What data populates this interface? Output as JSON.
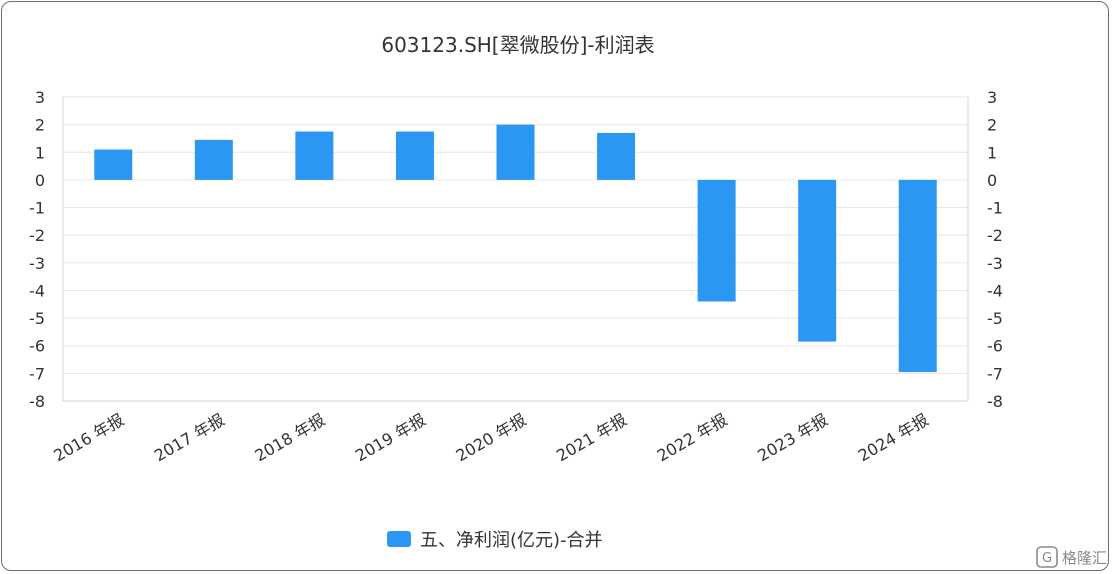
{
  "chart_data": {
    "type": "bar",
    "title": "603123.SH[翠微股份]-利润表",
    "categories": [
      "2016 年报",
      "2017 年报",
      "2018 年报",
      "2019 年报",
      "2020 年报",
      "2021 年报",
      "2022 年报",
      "2023 年报",
      "2024 年报"
    ],
    "series": [
      {
        "name": "五、净利润(亿元)-合并",
        "values": [
          1.1,
          1.45,
          1.75,
          1.75,
          2.0,
          1.7,
          -4.4,
          -5.85,
          -6.95
        ]
      }
    ],
    "yticks": [
      3,
      2,
      1,
      0,
      -1,
      -2,
      -3,
      -4,
      -5,
      -6,
      -7,
      -8
    ],
    "ytick_labels_left": [
      "3",
      "2",
      "1",
      "0",
      "-1",
      "-2",
      "-3",
      "-4",
      "-5",
      "-6",
      "-7",
      "-8"
    ],
    "ytick_labels_right": [
      "3",
      "2",
      "1",
      "0",
      "-1",
      "-2",
      "-3",
      "-4",
      "-5",
      "-6",
      "-7",
      "-8"
    ],
    "ylim": [
      -8,
      3
    ],
    "xlabel": "",
    "ylabel": "",
    "grid": true,
    "legend_position": "bottom-center",
    "bar_color": "#2b97f3"
  },
  "watermark": {
    "text": "格隆汇",
    "icon": "g-logo-icon"
  }
}
